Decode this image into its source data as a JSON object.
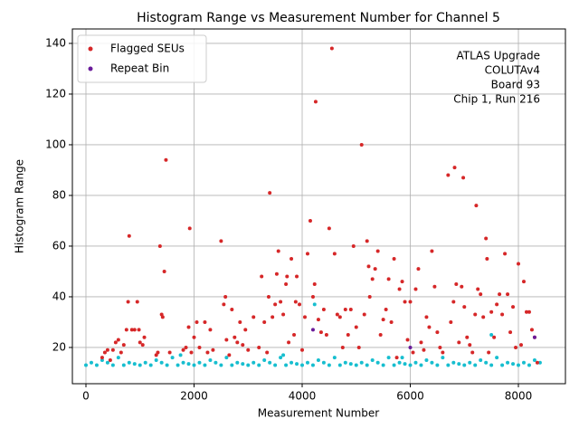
{
  "chart_data": {
    "type": "scatter",
    "title": "Histogram Range vs Measurement Number for Channel 5",
    "xlabel": "Measurement Number",
    "ylabel": "Histogram Range",
    "annotation": [
      "ATLAS Upgrade",
      "COLUTAv4",
      "Board 93",
      "Chip 1, Run 216"
    ],
    "xlim": [
      -251,
      8870
    ],
    "ylim": [
      5.7,
      145.7
    ],
    "xticks": [
      0,
      2000,
      4000,
      6000,
      8000
    ],
    "yticks": [
      20,
      40,
      60,
      80,
      100,
      120,
      140
    ],
    "grid": true,
    "legend": "upper left",
    "series": [
      {
        "color": "#17becf",
        "x": [
          0,
          100,
          200,
          300,
          400,
          500,
          600,
          700,
          800,
          900,
          1000,
          1100,
          1200,
          1300,
          1400,
          1500,
          1600,
          1700,
          1800,
          1900,
          2000,
          2100,
          2200,
          2300,
          2400,
          2500,
          2600,
          2700,
          2800,
          2900,
          3000,
          3100,
          3200,
          3300,
          3400,
          3500,
          3600,
          3700,
          3800,
          3900,
          4000,
          4100,
          4200,
          4300,
          4400,
          4500,
          4600,
          4700,
          4800,
          4900,
          5000,
          5100,
          5200,
          5300,
          5400,
          5500,
          5600,
          5700,
          5800,
          5900,
          6000,
          6100,
          6200,
          6300,
          6400,
          6500,
          6600,
          6700,
          6800,
          6900,
          7000,
          7100,
          7200,
          7300,
          7400,
          7500,
          7600,
          7700,
          7800,
          7900,
          8000,
          8100,
          8200,
          8300,
          8400,
          4230,
          7500,
          1750,
          3650,
          5850
        ],
        "values": [
          13,
          14,
          13,
          15,
          14,
          13,
          16,
          13,
          14,
          13.5,
          13,
          14,
          13,
          15,
          14,
          13,
          16,
          13,
          14,
          13.5,
          13,
          14,
          13,
          15,
          14,
          13,
          16,
          13,
          14,
          13.5,
          13,
          14,
          13,
          15,
          14,
          13,
          16,
          13,
          14,
          13.5,
          13,
          14,
          13,
          15,
          14,
          13,
          16,
          13,
          14,
          13.5,
          13,
          14,
          13,
          15,
          14,
          13,
          16,
          13,
          14,
          13.5,
          13,
          14,
          13,
          15,
          14,
          13,
          16,
          13,
          14,
          13.5,
          13,
          14,
          13,
          15,
          14,
          13,
          16,
          13,
          14,
          13.5,
          13,
          14,
          13,
          15,
          14,
          37,
          25,
          17,
          17,
          16
        ]
      },
      {
        "name": "Flagged SEUs",
        "color": "#d62728",
        "x": [
          300,
          350,
          400,
          450,
          500,
          550,
          600,
          650,
          700,
          750,
          780,
          800,
          850,
          900,
          950,
          980,
          1000,
          1050,
          1080,
          1300,
          1330,
          1370,
          1400,
          1420,
          1450,
          1480,
          1550,
          1800,
          1850,
          1900,
          1920,
          1950,
          2000,
          2050,
          2100,
          2200,
          2250,
          2300,
          2350,
          2500,
          2550,
          2580,
          2600,
          2650,
          2700,
          2750,
          2800,
          2850,
          2900,
          2950,
          3000,
          3100,
          3200,
          3250,
          3300,
          3350,
          3380,
          3400,
          3450,
          3500,
          3530,
          3560,
          3600,
          3650,
          3700,
          3720,
          3750,
          3800,
          3850,
          3880,
          3900,
          3950,
          4000,
          4050,
          4100,
          4150,
          4200,
          4230,
          4250,
          4300,
          4350,
          4400,
          4450,
          4500,
          4550,
          4600,
          4650,
          4700,
          4750,
          4800,
          4850,
          4900,
          4950,
          5000,
          5050,
          5100,
          5150,
          5200,
          5230,
          5250,
          5300,
          5350,
          5400,
          5450,
          5500,
          5550,
          5600,
          5650,
          5700,
          5750,
          5800,
          5850,
          5900,
          5950,
          6000,
          6050,
          6100,
          6150,
          6200,
          6250,
          6300,
          6350,
          6400,
          6450,
          6500,
          6550,
          6600,
          6700,
          6750,
          6800,
          6820,
          6850,
          6900,
          6950,
          6980,
          7000,
          7050,
          7100,
          7150,
          7200,
          7220,
          7250,
          7300,
          7350,
          7400,
          7420,
          7450,
          7500,
          7550,
          7600,
          7650,
          7700,
          7750,
          7800,
          7850,
          7900,
          7950,
          8000,
          8050,
          8100,
          8150,
          8200,
          8250,
          8300,
          8350
        ],
        "values": [
          16,
          18,
          19,
          15,
          19,
          22,
          23,
          18,
          21,
          27,
          38,
          64,
          27,
          27,
          38,
          27,
          22,
          21,
          24,
          17,
          18,
          60,
          33,
          32,
          50,
          94,
          18,
          19,
          20,
          28,
          67,
          18,
          24,
          30,
          20,
          30,
          18,
          27,
          19,
          62,
          37,
          40,
          23,
          17,
          35,
          24,
          22,
          30,
          21,
          27,
          19,
          32,
          20,
          48,
          30,
          18,
          40,
          81,
          32,
          37,
          49,
          58,
          38,
          33,
          45,
          48,
          22,
          55,
          25,
          38,
          48,
          37,
          19,
          32,
          57,
          70,
          40,
          45,
          117,
          31,
          26,
          35,
          25,
          67,
          138,
          57,
          33,
          32,
          20,
          35,
          25,
          35,
          60,
          28,
          20,
          100,
          33,
          62,
          52,
          40,
          47,
          51,
          58,
          25,
          31,
          35,
          47,
          30,
          55,
          16,
          43,
          46,
          38,
          23,
          38,
          18,
          43,
          51,
          22,
          19,
          32,
          28,
          58,
          44,
          26,
          20,
          18,
          88,
          30,
          38,
          91,
          45,
          22,
          44,
          87,
          36,
          24,
          21,
          18,
          33,
          76,
          43,
          41,
          32,
          63,
          55,
          18,
          34,
          24,
          37,
          41,
          33,
          57,
          41,
          26,
          36,
          20,
          53,
          21,
          46,
          34,
          34,
          27,
          24,
          14
        ]
      },
      {
        "name": "Repeat Bin",
        "color": "#6a1b9a",
        "x": [
          8300,
          4200,
          6000
        ],
        "values": [
          24,
          27,
          20
        ]
      }
    ]
  }
}
